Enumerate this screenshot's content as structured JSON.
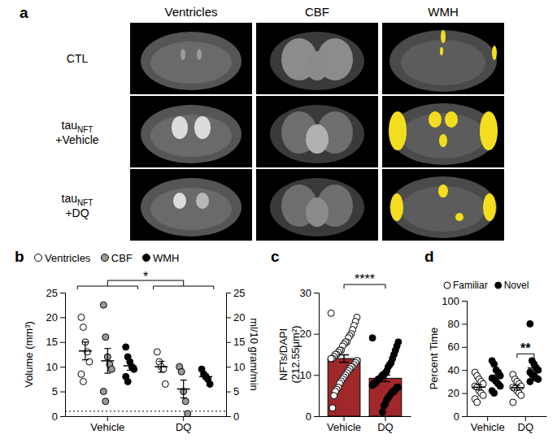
{
  "panel_a": {
    "letter": "a",
    "columns": [
      "Ventricles",
      "CBF",
      "WMH"
    ],
    "rows": [
      {
        "text": "CTL"
      },
      {
        "text": "tau",
        "subscript": "NFT",
        "second_line": "+Vehicle"
      },
      {
        "text": "tau",
        "subscript": "NFT",
        "second_line": "+DQ"
      }
    ]
  },
  "chart_data": [
    {
      "panel": "b",
      "type": "scatter",
      "categories": [
        "Vehicle",
        "DQ"
      ],
      "ylabel": "Volume (mm³)",
      "y2label": "ml/10 gram/min",
      "ylim": [
        0,
        25
      ],
      "yticks": [
        0,
        5,
        10,
        15,
        20,
        25
      ],
      "y2lim": [
        0,
        25
      ],
      "y2ticks": [
        0,
        5,
        10,
        15,
        20,
        25
      ],
      "hline": 1,
      "legend": "top",
      "significance": "*",
      "series": [
        {
          "name": "Ventricles",
          "color": "#ffffff",
          "marker": "circle",
          "values": [
            [
              20,
              18,
              15,
              13,
              11,
              8.5,
              7
            ],
            [
              13,
              11,
              10,
              9.5,
              6.5
            ]
          ],
          "mean": [
            13.2,
            10
          ],
          "sem": [
            1.8,
            1.1
          ]
        },
        {
          "name": "CBF",
          "color": "#9a9a9a",
          "marker": "circle",
          "axis": "y2",
          "values": [
            [
              22.5,
              16,
              12,
              10.5,
              9.5,
              5,
              3
            ],
            [
              10,
              9,
              5,
              3,
              0.5
            ]
          ],
          "mean": [
            11.2,
            5.5
          ],
          "sem": [
            2.5,
            1.8
          ]
        },
        {
          "name": "WMH",
          "color": "#000000",
          "marker": "circle",
          "values": [
            [
              14,
              12,
              11,
              10,
              9.5,
              8,
              7
            ],
            [
              9.5,
              8.5,
              8,
              7.5,
              6.5
            ]
          ],
          "mean": [
            10.2,
            8
          ],
          "sem": [
            0.9,
            0.5
          ]
        }
      ]
    },
    {
      "panel": "c",
      "type": "bar",
      "categories": [
        "Vehicle",
        "DQ"
      ],
      "ylabel": "NFTs/DAPI (212.55μm²)",
      "ylim": [
        0,
        30
      ],
      "yticks": [
        0,
        10,
        20,
        30
      ],
      "color": "#a0282b",
      "significance": "****",
      "values": [
        14,
        9.2
      ],
      "errors": [
        0.9,
        0.8
      ],
      "points": [
        [
          25,
          24,
          23,
          22,
          21,
          20,
          19.5,
          19,
          18,
          18,
          17.5,
          17,
          16,
          16,
          15.5,
          15,
          15,
          14.5,
          14,
          14,
          13.5,
          13,
          12.5,
          12,
          12,
          11.5,
          11,
          10.5,
          10,
          9.5,
          9,
          8.5,
          8,
          7,
          6.5,
          6,
          5,
          2
        ],
        [
          19,
          18,
          17,
          16,
          15,
          14,
          13,
          12.5,
          12,
          11,
          10.5,
          10,
          10,
          9.5,
          9,
          9,
          8.5,
          8,
          8,
          7.5,
          7,
          7,
          6.5,
          6,
          6,
          5.5,
          5,
          4.5,
          4,
          3,
          2.5,
          1
        ]
      ]
    },
    {
      "panel": "d",
      "type": "scatter",
      "categories": [
        "Vehicle",
        "DQ"
      ],
      "ylabel": "Percent Time",
      "ylim": [
        0,
        100
      ],
      "yticks": [
        0,
        20,
        40,
        60,
        80,
        100
      ],
      "legend": "top",
      "significance": {
        "text": "**",
        "category": "DQ"
      },
      "series": [
        {
          "name": "Familiar",
          "color": "#ffffff",
          "marker": "circle",
          "values": [
            [
              38,
              35,
              32,
              30,
              28,
              26,
              25,
              22,
              20,
              18,
              15,
              12
            ],
            [
              36,
              32,
              30,
              28,
              26,
              25,
              24,
              22,
              20,
              18,
              12
            ]
          ],
          "mean": [
            25.1,
            24.8
          ],
          "sem": [
            2.3,
            2.1
          ]
        },
        {
          "name": "Novel",
          "color": "#000000",
          "marker": "circle",
          "values": [
            [
              48,
              45,
              40,
              38,
              35,
              33,
              32,
              30,
              28,
              26,
              22,
              20
            ],
            [
              80,
              48,
              45,
              42,
              40,
              38,
              36,
              35,
              33,
              32,
              30
            ]
          ],
          "mean": [
            33.1,
            41.7
          ],
          "sem": [
            2.6,
            4.3
          ]
        }
      ]
    }
  ]
}
